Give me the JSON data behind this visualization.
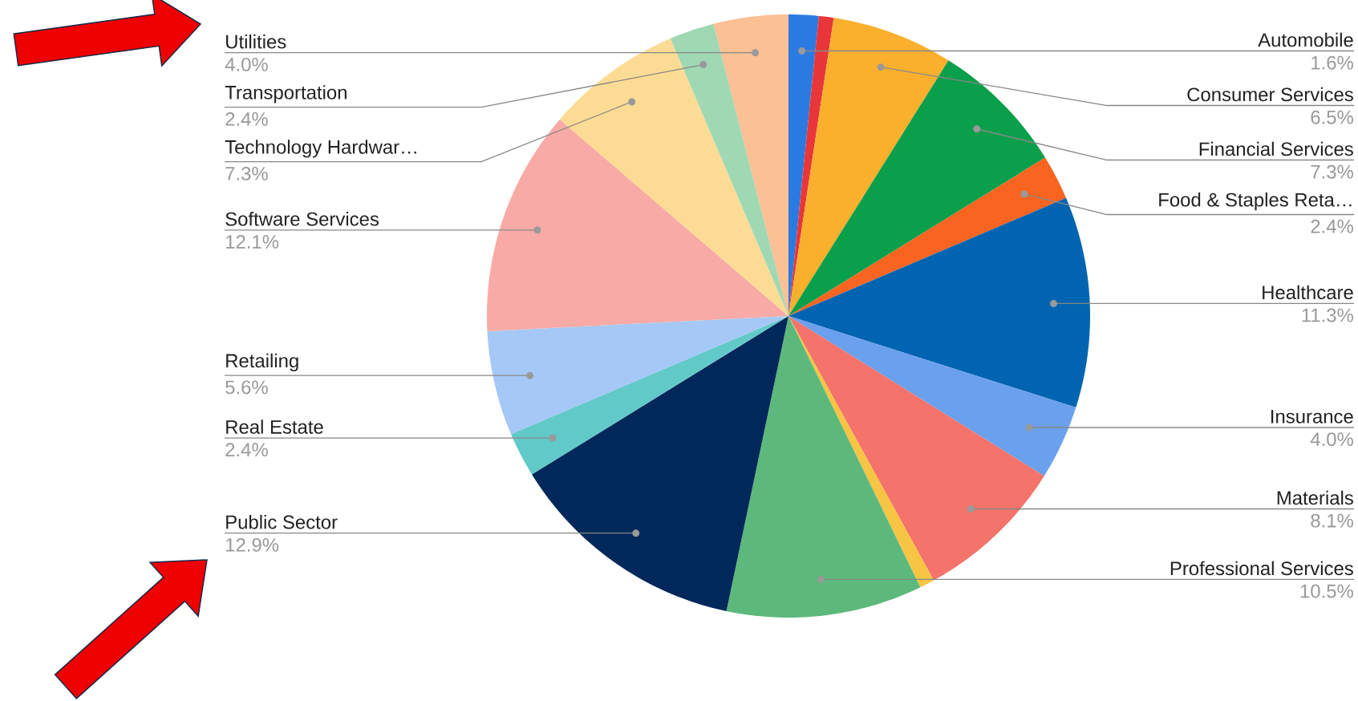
{
  "chart_data": {
    "type": "pie",
    "categories": [
      "Automobile",
      null,
      "Consumer Services",
      "Financial Services",
      "Food & Staples Reta…",
      "Healthcare",
      "Insurance",
      "Materials",
      null,
      "Professional Services",
      "Public Sector",
      "Real Estate",
      "Retailing",
      "Software Services",
      "Technology Hardwar…",
      "Transportation",
      "Utilities"
    ],
    "values": [
      1.6,
      0.8,
      6.5,
      7.3,
      2.4,
      11.3,
      4.0,
      8.1,
      0.8,
      10.5,
      12.9,
      2.4,
      5.6,
      12.1,
      7.3,
      2.4,
      4.0
    ],
    "value_labels": [
      "1.6%",
      null,
      "6.5%",
      "7.3%",
      "2.4%",
      "11.3%",
      "4.0%",
      "8.1%",
      null,
      "10.5%",
      "12.9%",
      "2.4%",
      "5.6%",
      "12.1%",
      "7.3%",
      "2.4%",
      "4.0%"
    ],
    "colors": [
      "#2a7ae2",
      "#e8363a",
      "#fbb02d",
      "#0a9f4a",
      "#f96421",
      "#0064b0",
      "#6aa0ee",
      "#f4736a",
      "#f8c444",
      "#5cb97b",
      "#00285a",
      "#62c9c9",
      "#a6c8f6",
      "#f8aaa6",
      "#fcdc94",
      "#a0d8b4",
      "#fbc094"
    ]
  }
}
